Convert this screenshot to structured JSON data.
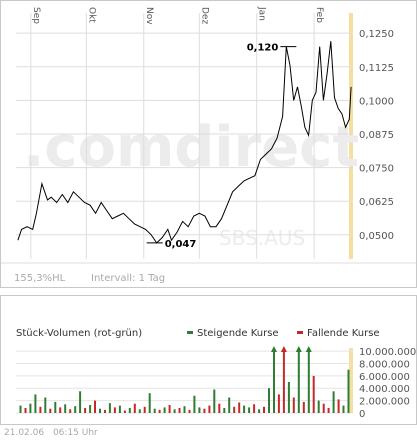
{
  "chart_data": [
    {
      "type": "line",
      "x_months": [
        "Sep",
        "Okt",
        "Nov",
        "Dez",
        "Jan",
        "Feb"
      ],
      "y_ticks": [
        "0,1250",
        "0,1125",
        "0,1000",
        "0,0875",
        "0,0750",
        "0,0625",
        "0,0500"
      ],
      "y_tick_values": [
        0.125,
        0.1125,
        0.1,
        0.0875,
        0.075,
        0.0625,
        0.05
      ],
      "ylim": [
        0.041,
        0.1325
      ],
      "x": [
        "2005-08-25",
        "2005-08-27",
        "2005-08-30",
        "2005-09-02",
        "2005-09-04",
        "2005-09-07",
        "2005-09-10",
        "2005-09-12",
        "2005-09-15",
        "2005-09-18",
        "2005-09-21",
        "2005-09-24",
        "2005-09-27",
        "2005-09-30",
        "2005-10-03",
        "2005-10-06",
        "2005-10-09",
        "2005-10-12",
        "2005-10-15",
        "2005-10-18",
        "2005-10-21",
        "2005-10-24",
        "2005-10-27",
        "2005-10-30",
        "2005-11-02",
        "2005-11-05",
        "2005-11-08",
        "2005-11-11",
        "2005-11-14",
        "2005-11-16",
        "2005-11-19",
        "2005-11-22",
        "2005-11-25",
        "2005-11-28",
        "2005-12-01",
        "2005-12-04",
        "2005-12-07",
        "2005-12-10",
        "2005-12-13",
        "2005-12-16",
        "2005-12-19",
        "2005-12-22",
        "2005-12-25",
        "2005-12-28",
        "2005-12-31",
        "2006-01-03",
        "2006-01-06",
        "2006-01-09",
        "2006-01-12",
        "2006-01-15",
        "2006-01-17",
        "2006-01-19",
        "2006-01-21",
        "2006-01-23",
        "2006-01-25",
        "2006-01-27",
        "2006-01-29",
        "2006-01-31",
        "2006-02-02",
        "2006-02-04",
        "2006-02-06",
        "2006-02-08",
        "2006-02-10",
        "2006-02-12",
        "2006-02-14",
        "2006-02-16",
        "2006-02-18",
        "2006-02-20",
        "2006-02-21"
      ],
      "y": [
        0.048,
        0.052,
        0.053,
        0.052,
        0.058,
        0.069,
        0.063,
        0.064,
        0.062,
        0.065,
        0.062,
        0.066,
        0.064,
        0.062,
        0.061,
        0.058,
        0.062,
        0.059,
        0.056,
        0.057,
        0.058,
        0.056,
        0.054,
        0.053,
        0.052,
        0.05,
        0.047,
        0.049,
        0.052,
        0.048,
        0.051,
        0.055,
        0.053,
        0.057,
        0.058,
        0.057,
        0.053,
        0.053,
        0.056,
        0.061,
        0.066,
        0.068,
        0.07,
        0.071,
        0.072,
        0.078,
        0.08,
        0.082,
        0.086,
        0.094,
        0.12,
        0.113,
        0.1,
        0.105,
        0.098,
        0.09,
        0.087,
        0.1,
        0.103,
        0.12,
        0.1,
        0.11,
        0.122,
        0.101,
        0.097,
        0.095,
        0.09,
        0.093,
        0.105
      ],
      "annotations": [
        {
          "label": "0,120",
          "x": "2006-01-17",
          "y": 0.12
        },
        {
          "label": "0,047",
          "x": "2005-11-08",
          "y": 0.047
        }
      ],
      "watermark": ".comdirect",
      "watermark_symbol": "SBS.AUS",
      "performance": "155,3%HL",
      "interval": "Intervall: 1 Tag",
      "colors": {
        "line": "#000000",
        "grid": "#dddddd",
        "highlight": "#f5dfa0",
        "watermark": "#ececec"
      }
    },
    {
      "type": "bar",
      "title": "Stück-Volumen (rot-grün)",
      "legend": [
        {
          "name": "Steigende Kurse",
          "color": "#2e7d32"
        },
        {
          "name": "Fallende Kurse",
          "color": "#c62828"
        }
      ],
      "y_ticks": [
        "10.000.000",
        "8.000.000",
        "6.000.000",
        "4.000.000",
        "2.000.000",
        "0"
      ],
      "y_tick_values": [
        10000000,
        8000000,
        6000000,
        4000000,
        2000000,
        0
      ],
      "ylim": [
        0,
        10500000
      ],
      "values": [
        1200000,
        800000,
        1500000,
        3000000,
        1000000,
        2500000,
        700000,
        1800000,
        900000,
        1400000,
        600000,
        1100000,
        3500000,
        800000,
        1300000,
        2000000,
        700000,
        500000,
        1600000,
        900000,
        1200000,
        400000,
        800000,
        1500000,
        600000,
        1000000,
        3200000,
        700000,
        500000,
        900000,
        1300000,
        600000,
        800000,
        1100000,
        500000,
        2800000,
        900000,
        700000,
        1200000,
        3800000,
        1500000,
        800000,
        2500000,
        1000000,
        1700000,
        1200000,
        900000,
        1400000,
        600000,
        1000000,
        4000000,
        10500000,
        3000000,
        10500000,
        5000000,
        2500000,
        10500000,
        1800000,
        10500000,
        6000000,
        2000000,
        1500000,
        800000,
        3500000,
        2200000,
        1200000,
        7000000
      ],
      "directions": [
        "up",
        "down",
        "up",
        "up",
        "down",
        "up",
        "down",
        "up",
        "down",
        "up",
        "down",
        "up",
        "up",
        "down",
        "up",
        "down",
        "up",
        "down",
        "up",
        "down",
        "up",
        "down",
        "up",
        "down",
        "up",
        "down",
        "up",
        "up",
        "down",
        "up",
        "down",
        "up",
        "down",
        "up",
        "down",
        "up",
        "up",
        "down",
        "down",
        "up",
        "down",
        "up",
        "up",
        "down",
        "down",
        "up",
        "up",
        "down",
        "up",
        "down",
        "up",
        "up",
        "down",
        "down",
        "up",
        "down",
        "up",
        "down",
        "up",
        "down",
        "up",
        "down",
        "down",
        "up",
        "down",
        "up",
        "up"
      ],
      "capped_indices": [
        51,
        53,
        56,
        58
      ]
    }
  ],
  "footer": {
    "date": "21.02.06",
    "time": "06:15 Uhr"
  }
}
